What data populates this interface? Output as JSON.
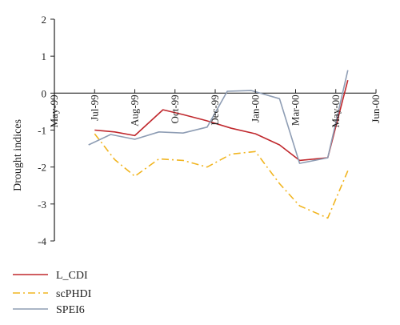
{
  "chart_data": {
    "type": "line",
    "ylabel": "Drought indices",
    "xlabel": "",
    "ylim": [
      -4,
      2
    ],
    "yticks": [
      2,
      1,
      0,
      -1,
      -2,
      -3,
      -4
    ],
    "xticks": [
      {
        "label": "May-99",
        "x": 0
      },
      {
        "label": "Jul-99",
        "x": 1
      },
      {
        "label": "Aug-99",
        "x": 2
      },
      {
        "label": "Oct-99",
        "x": 3
      },
      {
        "label": "Dec-99",
        "x": 4
      },
      {
        "label": "Jan-00",
        "x": 5
      },
      {
        "label": "Mar-00",
        "x": 6
      },
      {
        "label": "May-00",
        "x": 7
      },
      {
        "label": "Jun-00",
        "x": 8
      }
    ],
    "x_range": [
      0,
      8
    ],
    "grid": false,
    "legend_position": "bottom-left",
    "series": [
      {
        "name": "L_CDI",
        "color": "#c0282d",
        "style": "solid",
        "points": [
          {
            "x": 1.0,
            "y": -1.0
          },
          {
            "x": 1.5,
            "y": -1.05
          },
          {
            "x": 2.0,
            "y": -1.15
          },
          {
            "x": 2.7,
            "y": -0.45
          },
          {
            "x": 3.2,
            "y": -0.58
          },
          {
            "x": 3.8,
            "y": -0.75
          },
          {
            "x": 4.4,
            "y": -0.95
          },
          {
            "x": 5.0,
            "y": -1.1
          },
          {
            "x": 5.6,
            "y": -1.4
          },
          {
            "x": 6.1,
            "y": -1.82
          },
          {
            "x": 6.8,
            "y": -1.75
          },
          {
            "x": 7.3,
            "y": 0.35
          }
        ]
      },
      {
        "name": "scPHDI",
        "color": "#f1b521",
        "style": "dashdot",
        "points": [
          {
            "x": 1.0,
            "y": -1.1
          },
          {
            "x": 1.5,
            "y": -1.8
          },
          {
            "x": 2.0,
            "y": -2.25
          },
          {
            "x": 2.6,
            "y": -1.78
          },
          {
            "x": 3.2,
            "y": -1.82
          },
          {
            "x": 3.8,
            "y": -2.0
          },
          {
            "x": 4.4,
            "y": -1.65
          },
          {
            "x": 5.0,
            "y": -1.58
          },
          {
            "x": 5.6,
            "y": -2.45
          },
          {
            "x": 6.1,
            "y": -3.05
          },
          {
            "x": 6.8,
            "y": -3.38
          },
          {
            "x": 7.3,
            "y": -2.1
          }
        ]
      },
      {
        "name": "SPEI6",
        "color": "#8e9db4",
        "style": "solid",
        "points": [
          {
            "x": 0.85,
            "y": -1.4
          },
          {
            "x": 1.4,
            "y": -1.12
          },
          {
            "x": 2.0,
            "y": -1.25
          },
          {
            "x": 2.6,
            "y": -1.05
          },
          {
            "x": 3.2,
            "y": -1.08
          },
          {
            "x": 3.8,
            "y": -0.92
          },
          {
            "x": 4.3,
            "y": 0.05
          },
          {
            "x": 4.9,
            "y": 0.07
          },
          {
            "x": 5.6,
            "y": -0.15
          },
          {
            "x": 6.1,
            "y": -1.9
          },
          {
            "x": 6.8,
            "y": -1.75
          },
          {
            "x": 7.3,
            "y": 0.62
          }
        ]
      }
    ]
  }
}
